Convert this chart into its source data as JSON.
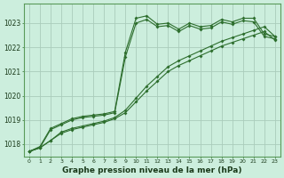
{
  "background_color": "#cceedd",
  "grid_color": "#aaccbb",
  "line_color": "#2d6e2d",
  "title": "Graphe pression niveau de la mer (hPa)",
  "xlim": [
    -0.5,
    23.5
  ],
  "ylim": [
    1017.5,
    1023.8
  ],
  "yticks": [
    1018,
    1019,
    1020,
    1021,
    1022,
    1023
  ],
  "xticks": [
    0,
    1,
    2,
    3,
    4,
    5,
    6,
    7,
    8,
    9,
    10,
    11,
    12,
    13,
    14,
    15,
    16,
    17,
    18,
    19,
    20,
    21,
    22,
    23
  ],
  "line1_x": [
    0,
    1,
    2,
    3,
    4,
    5,
    6,
    7,
    8,
    9,
    10,
    11,
    12,
    13,
    14,
    15,
    16,
    17,
    18,
    19,
    20,
    21,
    22,
    23
  ],
  "line1_y": [
    1017.7,
    1017.85,
    1018.15,
    1018.5,
    1018.65,
    1018.75,
    1018.85,
    1018.95,
    1019.1,
    1019.4,
    1019.9,
    1020.4,
    1020.8,
    1021.2,
    1021.45,
    1021.65,
    1021.85,
    1022.05,
    1022.25,
    1022.4,
    1022.55,
    1022.7,
    1022.85,
    1022.45
  ],
  "line2_x": [
    0,
    1,
    2,
    3,
    4,
    5,
    6,
    7,
    8,
    9,
    10,
    11,
    12,
    13,
    14,
    15,
    16,
    17,
    18,
    19,
    20,
    21,
    22,
    23
  ],
  "line2_y": [
    1017.7,
    1017.85,
    1018.15,
    1018.45,
    1018.6,
    1018.7,
    1018.8,
    1018.9,
    1019.05,
    1019.3,
    1019.75,
    1020.2,
    1020.6,
    1021.0,
    1021.25,
    1021.45,
    1021.65,
    1021.85,
    1022.05,
    1022.2,
    1022.35,
    1022.5,
    1022.65,
    1022.3
  ],
  "line3_x": [
    0,
    1,
    2,
    3,
    4,
    5,
    6,
    7,
    8,
    9,
    10,
    11,
    12,
    13,
    14,
    15,
    16,
    17,
    18,
    19,
    20,
    21,
    22,
    23
  ],
  "line3_y": [
    1017.7,
    1017.9,
    1018.65,
    1018.85,
    1019.05,
    1019.15,
    1019.2,
    1019.25,
    1019.35,
    1021.8,
    1023.2,
    1023.3,
    1022.95,
    1023.0,
    1022.75,
    1023.0,
    1022.85,
    1022.9,
    1023.15,
    1023.05,
    1023.2,
    1023.2,
    1022.55,
    1022.45
  ],
  "line4_x": [
    0,
    1,
    2,
    3,
    4,
    5,
    6,
    7,
    8,
    9,
    10,
    11,
    12,
    13,
    14,
    15,
    16,
    17,
    18,
    19,
    20,
    21,
    22,
    23
  ],
  "line4_y": [
    1017.7,
    1017.85,
    1018.6,
    1018.8,
    1019.0,
    1019.1,
    1019.15,
    1019.2,
    1019.3,
    1021.6,
    1023.0,
    1023.15,
    1022.85,
    1022.9,
    1022.65,
    1022.9,
    1022.75,
    1022.8,
    1023.05,
    1022.95,
    1023.1,
    1023.05,
    1022.45,
    1022.35
  ]
}
